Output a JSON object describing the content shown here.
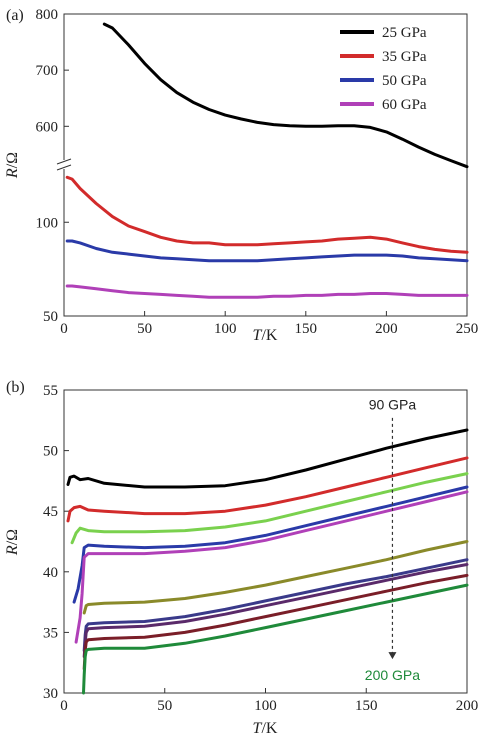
{
  "chart_data": [
    {
      "panel": "(a)",
      "type": "line",
      "xlabel_italic": "T",
      "xlabel_rest": "/K",
      "ylabel_italic": "R",
      "ylabel_rest": "/Ω",
      "xlim": [
        0,
        250
      ],
      "x_ticks": [
        0,
        50,
        100,
        150,
        200,
        250
      ],
      "y_axis_broken": true,
      "y_ticks_upper": [
        600,
        700,
        800
      ],
      "y_ticks_lower": [
        50,
        100
      ],
      "ylim_upper": [
        540,
        800
      ],
      "ylim_lower": [
        50,
        130
      ],
      "legend_position": "top-right",
      "series": [
        {
          "name": "25 GPa",
          "color": "#000000",
          "segment": "upper",
          "x": [
            25,
            30,
            40,
            50,
            60,
            70,
            80,
            90,
            100,
            110,
            120,
            130,
            140,
            150,
            160,
            170,
            180,
            190,
            200,
            210,
            220,
            230,
            240,
            250
          ],
          "y": [
            782,
            775,
            745,
            712,
            683,
            660,
            643,
            630,
            620,
            613,
            607,
            603,
            601,
            600,
            600,
            601,
            601,
            598,
            590,
            577,
            563,
            550,
            539,
            528
          ]
        },
        {
          "name": "35 GPa",
          "color": "#d22b2b",
          "segment": "lower",
          "x": [
            2,
            5,
            10,
            20,
            30,
            40,
            50,
            60,
            70,
            80,
            90,
            100,
            110,
            120,
            130,
            140,
            150,
            160,
            170,
            180,
            190,
            200,
            210,
            220,
            230,
            240,
            250
          ],
          "y": [
            124,
            123,
            118,
            110,
            103,
            98,
            95,
            92,
            90,
            89,
            89,
            88,
            88,
            88,
            88.5,
            89,
            89.5,
            90,
            91,
            91.5,
            92,
            91,
            89,
            87,
            85.5,
            84.5,
            84
          ]
        },
        {
          "name": "50 GPa",
          "color": "#2a3aa8",
          "segment": "lower",
          "x": [
            2,
            5,
            10,
            20,
            30,
            40,
            50,
            60,
            70,
            80,
            90,
            100,
            110,
            120,
            130,
            140,
            150,
            160,
            170,
            180,
            190,
            200,
            210,
            220,
            230,
            240,
            250
          ],
          "y": [
            90,
            90,
            89,
            86,
            84,
            83,
            82,
            81,
            80.5,
            80,
            79.5,
            79.5,
            79.5,
            79.5,
            80,
            80.5,
            81,
            81.5,
            82,
            82.5,
            82.5,
            82.5,
            82,
            81,
            80.5,
            80,
            79.5
          ]
        },
        {
          "name": "60 GPa",
          "color": "#b040b8",
          "segment": "lower",
          "x": [
            2,
            5,
            10,
            20,
            30,
            40,
            50,
            60,
            70,
            80,
            90,
            100,
            110,
            120,
            130,
            140,
            150,
            160,
            170,
            180,
            190,
            200,
            210,
            220,
            230,
            240,
            250
          ],
          "y": [
            66,
            66,
            65.5,
            64.5,
            63.5,
            62.5,
            62,
            61.5,
            61,
            60.5,
            60,
            60,
            60,
            60,
            60.5,
            60.5,
            61,
            61,
            61.5,
            61.5,
            62,
            62,
            61.5,
            61,
            61,
            61,
            61
          ]
        }
      ]
    },
    {
      "panel": "(b)",
      "type": "line",
      "xlabel_italic": "T",
      "xlabel_rest": "/K",
      "ylabel_italic": "R",
      "ylabel_rest": "/Ω",
      "xlim": [
        0,
        200
      ],
      "ylim": [
        30,
        55
      ],
      "x_ticks": [
        0,
        50,
        100,
        150,
        200
      ],
      "y_ticks": [
        30,
        35,
        40,
        45,
        50,
        55
      ],
      "annotations": [
        {
          "text": "90 GPa",
          "color": "#222222",
          "x": 163,
          "y": 53.8
        },
        {
          "text": "200 GPa",
          "color": "#1f8a3a",
          "x": 163,
          "y": 31.5
        }
      ],
      "arrow": {
        "x": 163,
        "y_from": 52.7,
        "y_to": 32.8
      },
      "series": [
        {
          "color": "#000000",
          "x": [
            2,
            3,
            5,
            8,
            12,
            20,
            40,
            60,
            80,
            100,
            120,
            140,
            160,
            180,
            200
          ],
          "y": [
            47.2,
            47.8,
            47.9,
            47.6,
            47.7,
            47.3,
            47.0,
            47.0,
            47.1,
            47.6,
            48.4,
            49.3,
            50.2,
            51.0,
            51.7
          ]
        },
        {
          "color": "#d22b2b",
          "x": [
            2,
            3,
            5,
            8,
            12,
            20,
            40,
            60,
            80,
            100,
            120,
            140,
            160,
            180,
            200
          ],
          "y": [
            44.2,
            45.0,
            45.3,
            45.4,
            45.1,
            45.0,
            44.8,
            44.8,
            45.0,
            45.5,
            46.2,
            47.0,
            47.8,
            48.6,
            49.4
          ]
        },
        {
          "color": "#7ad14e",
          "x": [
            4,
            6,
            8,
            12,
            20,
            40,
            60,
            80,
            100,
            120,
            140,
            160,
            180,
            200
          ],
          "y": [
            42.4,
            43.2,
            43.6,
            43.4,
            43.3,
            43.3,
            43.4,
            43.7,
            44.2,
            45.0,
            45.8,
            46.6,
            47.4,
            48.1
          ]
        },
        {
          "color": "#2a3aa8",
          "x": [
            5,
            7,
            9,
            10,
            12,
            20,
            40,
            60,
            80,
            100,
            120,
            140,
            160,
            180,
            200
          ],
          "y": [
            37.5,
            38.6,
            40.5,
            42.0,
            42.2,
            42.1,
            42.0,
            42.1,
            42.4,
            43.0,
            43.8,
            44.6,
            45.4,
            46.2,
            47.0
          ]
        },
        {
          "color": "#b040b8",
          "x": [
            6,
            8,
            9,
            10,
            12,
            20,
            40,
            60,
            80,
            100,
            120,
            140,
            160,
            180,
            200
          ],
          "y": [
            34.2,
            36.2,
            38.2,
            41.2,
            41.5,
            41.5,
            41.5,
            41.7,
            42.0,
            42.6,
            43.4,
            44.2,
            45.0,
            45.8,
            46.6
          ]
        },
        {
          "color": "#8a8a2a",
          "x": [
            10,
            11,
            12,
            20,
            40,
            60,
            80,
            100,
            120,
            140,
            160,
            180,
            200
          ],
          "y": [
            36.6,
            37.2,
            37.3,
            37.4,
            37.5,
            37.8,
            38.3,
            38.9,
            39.6,
            40.3,
            41.0,
            41.8,
            42.5
          ]
        },
        {
          "color": "#3a3a8a",
          "x": [
            10,
            10.5,
            11,
            12,
            20,
            40,
            60,
            80,
            100,
            120,
            140,
            160,
            180,
            200
          ],
          "y": [
            33.5,
            34.8,
            35.5,
            35.7,
            35.8,
            35.9,
            36.3,
            36.9,
            37.6,
            38.3,
            39.0,
            39.6,
            40.3,
            41.0
          ]
        },
        {
          "color": "#5a2a6a",
          "x": [
            10,
            10.5,
            11,
            12,
            20,
            40,
            60,
            80,
            100,
            120,
            140,
            160,
            180,
            200
          ],
          "y": [
            33.0,
            34.2,
            35.0,
            35.3,
            35.4,
            35.5,
            35.9,
            36.5,
            37.2,
            37.9,
            38.6,
            39.3,
            40.0,
            40.6
          ]
        },
        {
          "color": "#7a1e28",
          "x": [
            10,
            10.5,
            11,
            12,
            20,
            40,
            60,
            80,
            100,
            120,
            140,
            160,
            180,
            200
          ],
          "y": [
            32.0,
            33.5,
            34.2,
            34.4,
            34.5,
            34.6,
            35.0,
            35.6,
            36.3,
            37.0,
            37.7,
            38.4,
            39.1,
            39.7
          ]
        },
        {
          "color": "#1f8a3a",
          "x": [
            9.7,
            10,
            10.5,
            11,
            12,
            20,
            40,
            60,
            80,
            100,
            120,
            140,
            160,
            180,
            200
          ],
          "y": [
            30.0,
            31.5,
            33.0,
            33.5,
            33.6,
            33.7,
            33.7,
            34.1,
            34.7,
            35.4,
            36.1,
            36.8,
            37.5,
            38.2,
            38.9
          ]
        }
      ]
    }
  ]
}
